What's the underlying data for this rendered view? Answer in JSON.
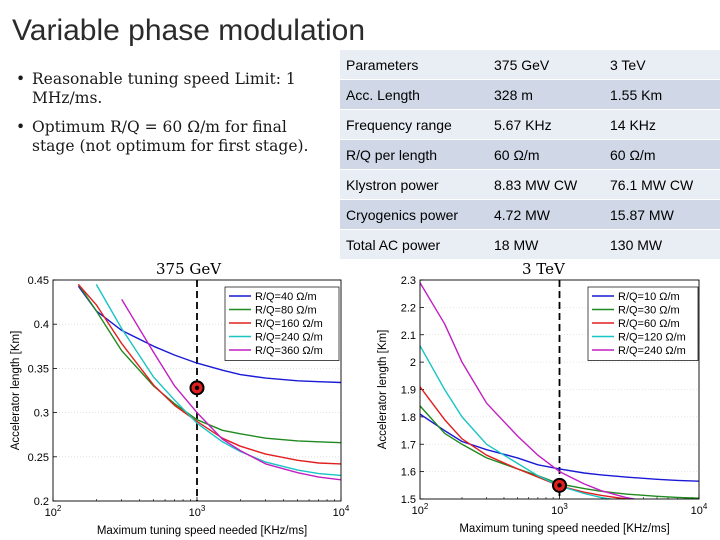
{
  "slide": {
    "title": "Variable phase modulation",
    "bullets": [
      "Reasonable tuning speed Limit: 1 MHz/ms.",
      "Optimum R/Q = 60 Ω/m for final stage (not optimum for first stage)."
    ]
  },
  "table": {
    "header": [
      "Parameters",
      "375 GeV",
      "3 TeV"
    ],
    "rows": [
      [
        "Acc. Length",
        "328 m",
        "1.55 Km"
      ],
      [
        "Frequency range",
        "5.67 KHz",
        "14 KHz"
      ],
      [
        "R/Q per length",
        "60 Ω/m",
        "60 Ω/m"
      ],
      [
        "Klystron power",
        "8.83 MW CW",
        "76.1 MW CW"
      ],
      [
        "Cryogenics power",
        "4.72 MW",
        "15.87 MW"
      ],
      [
        "Total AC power",
        "18 MW",
        "130 MW"
      ]
    ]
  },
  "chart_data": [
    {
      "type": "line",
      "title": "375 GeV",
      "xlabel": "Maximum tuning speed needed [KHz/ms]",
      "ylabel": "Accelerator length [Km]",
      "xscale": "log",
      "xlim": [
        100,
        10000
      ],
      "ylim": [
        0.2,
        0.45
      ],
      "x_ticks": [
        "10^2",
        "10^3",
        "10^4"
      ],
      "y_ticks": [
        "0.2",
        "0.25",
        "0.3",
        "0.35",
        "0.4",
        "0.45"
      ],
      "legend_position": "top-right",
      "grid": true,
      "marker_line_x": 1000,
      "operating_point": {
        "x": 1000,
        "y": 0.328
      },
      "x": [
        150,
        200,
        300,
        500,
        700,
        1000,
        1500,
        2000,
        3000,
        5000,
        7000,
        10000
      ],
      "series": [
        {
          "name": "R/Q=40 Ω/m",
          "color": "#1a1ad6",
          "values": [
            0.443,
            0.415,
            0.393,
            0.375,
            0.365,
            0.356,
            0.348,
            0.343,
            0.339,
            0.336,
            0.335,
            0.334
          ]
        },
        {
          "name": "R/Q=80 Ω/m",
          "color": "#1f8a1f",
          "values": [
            0.445,
            0.415,
            0.37,
            0.33,
            0.31,
            0.292,
            0.28,
            0.276,
            0.271,
            0.268,
            0.267,
            0.266
          ]
        },
        {
          "name": "R/Q=160 Ω/m",
          "color": "#e01f1f",
          "values": [
            0.445,
            0.422,
            0.378,
            0.331,
            0.308,
            0.29,
            0.271,
            0.262,
            0.253,
            0.246,
            0.243,
            0.242
          ]
        },
        {
          "name": "R/Q=240 Ω/m",
          "color": "#19c4c4",
          "values": [
            null,
            0.445,
            0.395,
            0.34,
            0.314,
            0.288,
            0.267,
            0.256,
            0.244,
            0.235,
            0.231,
            0.229
          ]
        },
        {
          "name": "R/Q=360 Ω/m",
          "color": "#c21fc2",
          "values": [
            null,
            null,
            0.428,
            0.368,
            0.33,
            0.3,
            0.27,
            0.257,
            0.242,
            0.232,
            0.227,
            0.224
          ]
        }
      ]
    },
    {
      "type": "line",
      "title": "3 TeV",
      "xlabel": "Maximum tuning speed needed [KHz/ms]",
      "ylabel": "Accelerator length [Km]",
      "xscale": "log",
      "xlim": [
        100,
        10000
      ],
      "ylim": [
        1.5,
        2.3
      ],
      "x_ticks": [
        "10^2",
        "10^3",
        "10^4"
      ],
      "y_ticks": [
        "1.5",
        "1.6",
        "1.7",
        "1.8",
        "1.9",
        "2",
        "2.1",
        "2.2",
        "2.3"
      ],
      "legend_position": "top-right",
      "grid": true,
      "marker_line_x": 1000,
      "operating_point": {
        "x": 1000,
        "y": 1.55
      },
      "x": [
        100,
        150,
        200,
        300,
        500,
        700,
        1000,
        1500,
        2000,
        3000,
        5000,
        7000,
        10000
      ],
      "series": [
        {
          "name": "R/Q=10 Ω/m",
          "color": "#1a1ad6",
          "values": [
            1.81,
            1.75,
            1.71,
            1.68,
            1.65,
            1.625,
            1.61,
            1.595,
            1.588,
            1.58,
            1.572,
            1.568,
            1.565
          ]
        },
        {
          "name": "R/Q=30 Ω/m",
          "color": "#1f8a1f",
          "values": [
            1.84,
            1.74,
            1.7,
            1.65,
            1.61,
            1.585,
            1.555,
            1.538,
            1.528,
            1.518,
            1.51,
            1.506,
            1.503
          ]
        },
        {
          "name": "R/Q=60 Ω/m",
          "color": "#e01f1f",
          "values": [
            1.91,
            1.79,
            1.72,
            1.66,
            1.61,
            1.58,
            1.548,
            1.525,
            1.513,
            1.5,
            1.49,
            1.485,
            1.482
          ]
        },
        {
          "name": "R/Q=120 Ω/m",
          "color": "#19c4c4",
          "values": [
            2.06,
            1.9,
            1.8,
            1.7,
            1.63,
            1.585,
            1.548,
            1.52,
            1.505,
            1.49,
            1.478,
            1.472,
            1.468
          ]
        },
        {
          "name": "R/Q=240 Ω/m",
          "color": "#c21fc2",
          "values": [
            2.29,
            2.14,
            2.0,
            1.85,
            1.73,
            1.66,
            1.6,
            1.555,
            1.53,
            1.505,
            1.485,
            1.475,
            1.468
          ]
        }
      ]
    }
  ]
}
